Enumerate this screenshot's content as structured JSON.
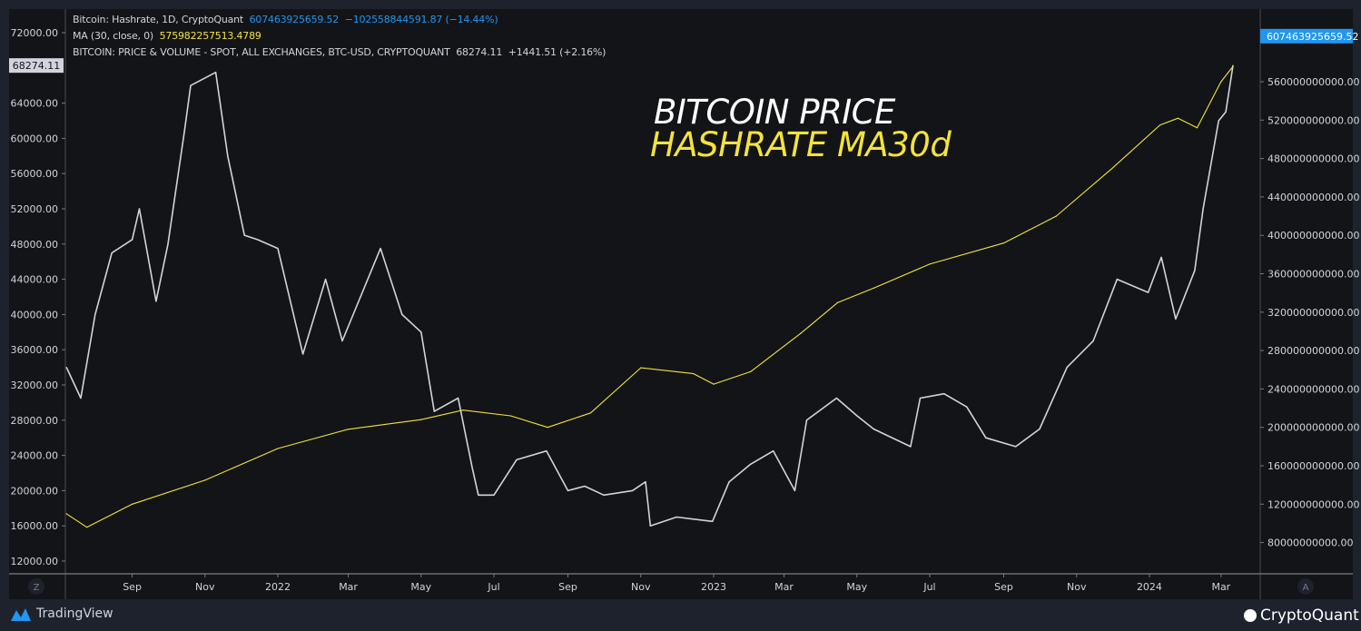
{
  "legend": {
    "hashrate": {
      "title": "Bitcoin: Hashrate, 1D, CryptoQuant",
      "value": "607463925659.52",
      "change": "−102558844591.87 (−14.44%)"
    },
    "ma": {
      "title": "MA (30, close, 0)",
      "value": "575982257513.4789"
    },
    "price": {
      "title": "BITCOIN: PRICE & VOLUME - SPOT, ALL EXCHANGES, BTC-USD, CRYPTOQUANT",
      "value": "68274.11",
      "change": "+1441.51 (+2.16%)"
    }
  },
  "annotations": {
    "line1": "BITCOIN PRICE",
    "line2": "HASHRATE MA30d"
  },
  "branding": {
    "left": "TradingView",
    "right": "CryptoQuant"
  },
  "buttons": {
    "left_scale": "Z",
    "right_scale": "A"
  },
  "colors": {
    "price": "#d1d4dc",
    "ma": "#f3e33b",
    "hashrate_label": "#2196f3",
    "background": "#131417"
  },
  "chart_data": {
    "type": "line",
    "title": "",
    "xlim": [
      "2021-07-08",
      "2024-03-11"
    ],
    "x_ticks": [
      "Sep",
      "Nov",
      "2022",
      "Mar",
      "May",
      "Jul",
      "Sep",
      "Nov",
      "2023",
      "Mar",
      "May",
      "Jul",
      "Sep",
      "Nov",
      "2024",
      "Mar"
    ],
    "x_tick_dates": [
      "2021-09-01",
      "2021-11-01",
      "2022-01-01",
      "2022-03-01",
      "2022-05-01",
      "2022-07-01",
      "2022-09-01",
      "2022-11-01",
      "2023-01-01",
      "2023-03-01",
      "2023-05-01",
      "2023-07-01",
      "2023-09-01",
      "2023-11-01",
      "2024-01-01",
      "2024-03-01"
    ],
    "left_axis": {
      "ylim": [
        10000,
        74000
      ],
      "ticks": [
        "72000.00",
        "64000.00",
        "60000.00",
        "56000.00",
        "52000.00",
        "48000.00",
        "44000.00",
        "40000.00",
        "36000.00",
        "32000.00",
        "28000.00",
        "24000.00",
        "20000.00",
        "16000.00",
        "12000.00"
      ],
      "last_label": "68274.11"
    },
    "right_axis": {
      "ylim": [
        40000000000,
        620000000000
      ],
      "ticks": [
        "560000000000.00",
        "520000000000.00",
        "480000000000.00",
        "440000000000.00",
        "400000000000.00",
        "360000000000.00",
        "320000000000.00",
        "280000000000.00",
        "240000000000.00",
        "200000000000.00",
        "160000000000.00",
        "120000000000.00",
        "80000000000.00"
      ],
      "last_label": "607463925659.52"
    },
    "grid": false,
    "series": [
      {
        "name": "BITCOIN: PRICE & VOLUME - SPOT, ALL EXCHANGES, BTC-USD, CRYPTOQUANT",
        "axis": "left",
        "x": [
          "2021-07-08",
          "2021-07-20",
          "2021-08-01",
          "2021-08-15",
          "2021-09-01",
          "2021-09-07",
          "2021-09-21",
          "2021-10-01",
          "2021-10-15",
          "2021-10-20",
          "2021-11-10",
          "2021-11-20",
          "2021-12-04",
          "2021-12-15",
          "2022-01-01",
          "2022-01-22",
          "2022-02-10",
          "2022-02-24",
          "2022-03-28",
          "2022-04-15",
          "2022-05-01",
          "2022-05-12",
          "2022-06-01",
          "2022-06-13",
          "2022-06-18",
          "2022-07-01",
          "2022-07-20",
          "2022-08-14",
          "2022-09-01",
          "2022-09-15",
          "2022-10-01",
          "2022-10-25",
          "2022-11-05",
          "2022-11-09",
          "2022-12-01",
          "2022-12-31",
          "2023-01-14",
          "2023-02-01",
          "2023-02-20",
          "2023-03-10",
          "2023-03-20",
          "2023-04-14",
          "2023-05-01",
          "2023-05-15",
          "2023-06-15",
          "2023-06-23",
          "2023-07-13",
          "2023-08-01",
          "2023-08-17",
          "2023-09-11",
          "2023-10-01",
          "2023-10-24",
          "2023-11-15",
          "2023-12-05",
          "2023-12-31",
          "2024-01-11",
          "2024-01-23",
          "2024-02-08",
          "2024-02-15",
          "2024-02-28",
          "2024-03-05",
          "2024-03-11"
        ],
        "y": [
          34000,
          30500,
          40000,
          47000,
          48500,
          52000,
          41500,
          48000,
          61000,
          66000,
          67500,
          58000,
          49000,
          48500,
          47500,
          35500,
          44000,
          37000,
          47500,
          40000,
          38000,
          29000,
          30500,
          22500,
          19500,
          19500,
          23500,
          24500,
          20000,
          20500,
          19500,
          20000,
          21000,
          16000,
          17000,
          16500,
          21000,
          23000,
          24500,
          20000,
          28000,
          30500,
          28500,
          27000,
          25000,
          30500,
          31000,
          29500,
          26000,
          25000,
          27000,
          34000,
          37000,
          44000,
          42500,
          46500,
          39500,
          45000,
          52000,
          62000,
          63000,
          68274
        ]
      },
      {
        "name": "MA (30, close, 0)",
        "axis": "right",
        "x": [
          "2021-07-08",
          "2021-07-25",
          "2021-09-01",
          "2021-11-01",
          "2022-01-01",
          "2022-03-01",
          "2022-05-01",
          "2022-06-05",
          "2022-07-15",
          "2022-08-15",
          "2022-09-20",
          "2022-11-01",
          "2022-12-15",
          "2023-01-01",
          "2023-02-01",
          "2023-03-15",
          "2023-04-15",
          "2023-05-15",
          "2023-07-01",
          "2023-09-01",
          "2023-10-15",
          "2023-12-01",
          "2024-01-10",
          "2024-01-25",
          "2024-02-10",
          "2024-03-01",
          "2024-03-11"
        ],
        "y": [
          110000000000,
          96000000000,
          120000000000,
          145000000000,
          178000000000,
          198000000000,
          208000000000,
          218000000000,
          212000000000,
          200000000000,
          215000000000,
          262000000000,
          256000000000,
          245000000000,
          258000000000,
          298000000000,
          330000000000,
          345000000000,
          370000000000,
          392000000000,
          420000000000,
          470000000000,
          515000000000,
          522000000000,
          512000000000,
          560000000000,
          576000000000
        ]
      }
    ]
  }
}
